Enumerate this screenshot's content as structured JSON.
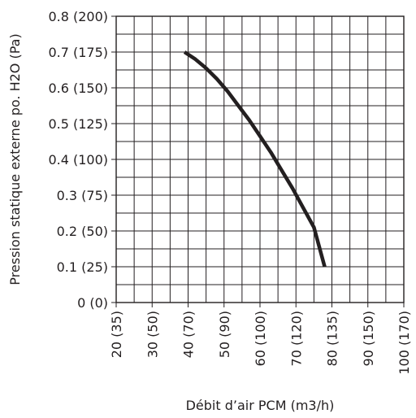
{
  "chart_data": {
    "type": "line",
    "xlabel": "Débit d’air PCM (m3/h)",
    "ylabel": "Pression statique externe po. H2O (Pa)",
    "x_ticks": [
      {
        "value": 20,
        "label": "20 (35)"
      },
      {
        "value": 30,
        "label": "30 (50)"
      },
      {
        "value": 40,
        "label": "40 (70)"
      },
      {
        "value": 50,
        "label": "50 (90)"
      },
      {
        "value": 60,
        "label": "60 (100)"
      },
      {
        "value": 70,
        "label": "70 (120)"
      },
      {
        "value": 80,
        "label": "80 (135)"
      },
      {
        "value": 90,
        "label": "90 (150)"
      },
      {
        "value": 100,
        "label": "100 (170)"
      }
    ],
    "y_ticks": [
      {
        "value": 0,
        "label": "0 (0)"
      },
      {
        "value": 0.1,
        "label": "0.1 (25)"
      },
      {
        "value": 0.2,
        "label": "0.2 (50)"
      },
      {
        "value": 0.3,
        "label": "0.3 (75)"
      },
      {
        "value": 0.4,
        "label": "0.4 (100)"
      },
      {
        "value": 0.5,
        "label": "0.5 (125)"
      },
      {
        "value": 0.6,
        "label": "0.6 (150)"
      },
      {
        "value": 0.7,
        "label": "0.7 (175)"
      },
      {
        "value": 0.8,
        "label": "0.8 (200)"
      }
    ],
    "xlim": [
      20,
      100
    ],
    "ylim": [
      0,
      0.8
    ],
    "x_minor_step": 5,
    "y_minor_step": 0.05,
    "grid": true,
    "legend": "none",
    "series": [
      {
        "x": [
          39,
          42,
          45,
          48,
          51,
          54,
          57,
          60,
          63,
          66,
          69,
          72,
          75,
          78
        ],
        "y": [
          0.7,
          0.68,
          0.655,
          0.625,
          0.59,
          0.55,
          0.51,
          0.465,
          0.42,
          0.37,
          0.32,
          0.265,
          0.21,
          0.1
        ],
        "color": "#231f20"
      }
    ]
  }
}
